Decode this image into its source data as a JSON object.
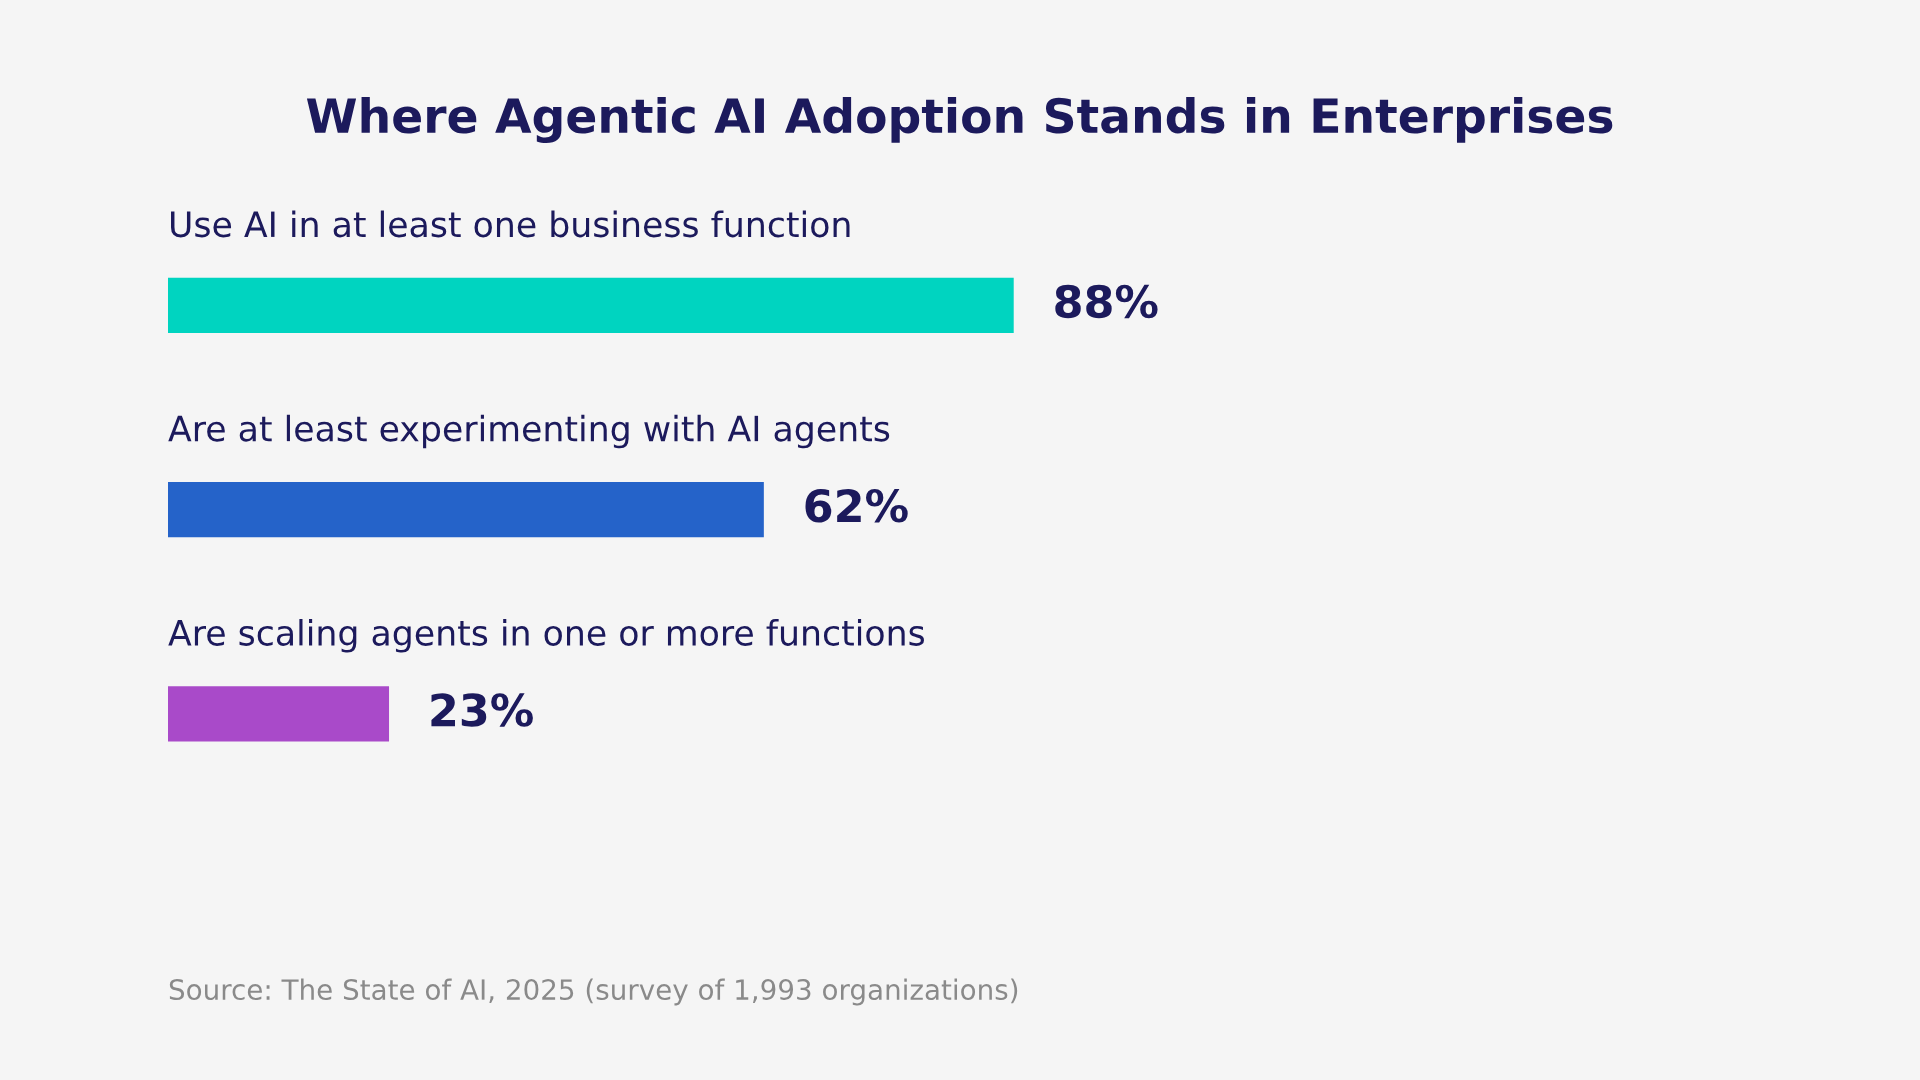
{
  "chart_data": {
    "type": "bar",
    "orientation": "horizontal",
    "title": "Where Agentic AI Adoption Stands in Enterprises",
    "categories": [
      "Use AI in at least one business function",
      "Are at least experimenting with AI agents",
      "Are scaling agents in one or more functions"
    ],
    "values": [
      88,
      62,
      23
    ],
    "colors": [
      "#00d4c0",
      "#2563c9",
      "#a94ac9"
    ],
    "value_labels": [
      "88%",
      "62%",
      "23%"
    ],
    "annotations": [
      "Source: The State of AI, 2025 (survey of 1,993 organizations)"
    ]
  }
}
